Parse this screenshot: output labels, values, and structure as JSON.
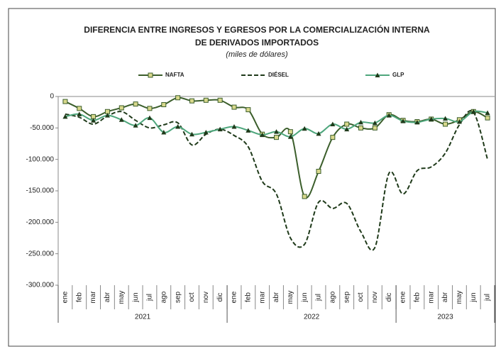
{
  "chart_data": {
    "type": "line",
    "title": [
      "DIFERENCIA ENTRE INGRESOS Y EGRESOS POR LA COMERCIALIZACIÓN INTERNA",
      "DE DERIVADOS IMPORTADOS"
    ],
    "subtitle": "(miles de dólares)",
    "categories": [
      "ene",
      "feb",
      "mar",
      "abr",
      "may",
      "jun",
      "jul",
      "ago",
      "sep",
      "oct",
      "nov",
      "dic",
      "ene",
      "feb",
      "mar",
      "abr",
      "may",
      "jun",
      "jul",
      "ago",
      "sep",
      "oct",
      "nov",
      "dic",
      "ene",
      "feb",
      "mar",
      "abr",
      "may",
      "jun",
      "jul"
    ],
    "x_groups": [
      {
        "label": "2021",
        "count": 12
      },
      {
        "label": "2022",
        "count": 12
      },
      {
        "label": "2023",
        "count": 7
      }
    ],
    "series": [
      {
        "name": "NAFTA",
        "color": "#3b5e2b",
        "marker": "square",
        "marker_color": "#d8d88c",
        "dashed": false,
        "values": [
          -8000,
          -19000,
          -32000,
          -24000,
          -18000,
          -12000,
          -19000,
          -13000,
          -2000,
          -7000,
          -6000,
          -6000,
          -17000,
          -21000,
          -60000,
          -65000,
          -56000,
          -159000,
          -119000,
          -65000,
          -44000,
          -50000,
          -50000,
          -29000,
          -38000,
          -40000,
          -36000,
          -44000,
          -37000,
          -24000,
          -34000
        ]
      },
      {
        "name": "DIÉSEL",
        "color": "#1f3a1a",
        "marker": "none",
        "dashed": true,
        "values": [
          -28000,
          -33000,
          -44000,
          -31000,
          -24000,
          -38000,
          -50000,
          -45000,
          -42000,
          -77000,
          -60000,
          -52000,
          -62000,
          -80000,
          -135000,
          -155000,
          -225000,
          -235000,
          -168000,
          -178000,
          -170000,
          -215000,
          -240000,
          -122000,
          -155000,
          -118000,
          -112000,
          -90000,
          -45000,
          -25000,
          -100000
        ]
      },
      {
        "name": "GLP",
        "color": "#4ea67c",
        "marker": "triangle",
        "marker_color": "#1f3a1a",
        "dashed": false,
        "values": [
          -32000,
          -28000,
          -38000,
          -30000,
          -37000,
          -46000,
          -34000,
          -57000,
          -48000,
          -60000,
          -57000,
          -52000,
          -48000,
          -54000,
          -61000,
          -56000,
          -64000,
          -51000,
          -59000,
          -44000,
          -52000,
          -41000,
          -42000,
          -30000,
          -39000,
          -41000,
          -36000,
          -35000,
          -40000,
          -24000,
          -26000
        ]
      }
    ],
    "ylim": [
      -300000,
      0
    ],
    "yticks": [
      0,
      {
        "value": -50000,
        "label": "-50.000"
      },
      {
        "value": -100000,
        "label": "-100.000"
      },
      {
        "value": -150000,
        "label": "-150.000"
      },
      {
        "value": -200000,
        "label": "-200.000"
      },
      {
        "value": -250000,
        "label": "-250.000"
      },
      {
        "value": -300000,
        "label": "-300.000"
      }
    ],
    "legend": "top",
    "grid": false
  }
}
